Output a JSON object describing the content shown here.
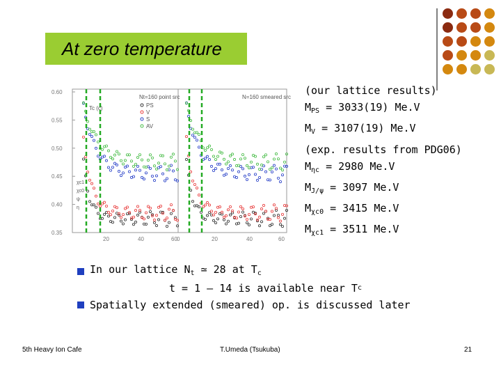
{
  "title": "At zero temperature",
  "lattice": {
    "header": "(our lattice results)",
    "rows": [
      {
        "label": "M",
        "sub": "PS",
        "value": " = 3033(19) Me.V"
      },
      {
        "label": "M",
        "sub": "V",
        "value": "  = 3107(19) Me.V"
      }
    ]
  },
  "experiment": {
    "header": "(exp. results from PDG06)",
    "rows": [
      {
        "label": "M",
        "sub": "ηc",
        "value": "  = 2980 Me.V"
      },
      {
        "label": "M",
        "sub": "J/ψ",
        "value": " = 3097 Me.V"
      },
      {
        "label": "M",
        "sub": "χc0",
        "value": " = 3415 Me.V"
      },
      {
        "label": "M",
        "sub": "χc1",
        "value": " = 3511 Me.V"
      }
    ]
  },
  "bullets": {
    "b1_text": "In our lattice  N",
    "b1_sub": "t",
    "b1_rest": " ≃ 28 at T",
    "b1_sub2": "c",
    "b2_text": "t = 1 – 14 is available near T",
    "b2_sub": "c",
    "b3_text": "Spatially extended (smeared) op. is discussed later"
  },
  "footer": {
    "left": "5th Heavy Ion Cafe",
    "center": "T.Umeda (Tsukuba)",
    "right": "21"
  },
  "chart_data": {
    "type": "scatter",
    "title": "",
    "panels": [
      {
        "label": "Nt=160 point src",
        "x_ticks": [
          "20",
          "40",
          "60"
        ],
        "marker": "Tc (c)"
      },
      {
        "label": "N=160 smeared src",
        "x_ticks": [
          "0",
          "20",
          "40",
          "60"
        ]
      }
    ],
    "y_ticks": [
      "0.60",
      "0.55",
      "0.50",
      "0.45",
      "0.40",
      "0.35"
    ],
    "ylim": [
      0.35,
      0.6
    ],
    "xlim": [
      0,
      60
    ],
    "legend": [
      "PS",
      "V",
      "S",
      "AV"
    ],
    "series_colors": {
      "PS": "#333333",
      "V": "#e83a3a",
      "S": "#2840c8",
      "AV": "#44bb44"
    },
    "annotations": [
      "χc1",
      "χc0",
      "ψ",
      "η"
    ]
  },
  "colors": {
    "title_bg": "#9acd32",
    "bullet": "#1f3fbf",
    "dashed_line": "#22aa22",
    "dots": [
      "#8b2a10",
      "#b84a16",
      "#d4880f",
      "#c8b855"
    ]
  }
}
